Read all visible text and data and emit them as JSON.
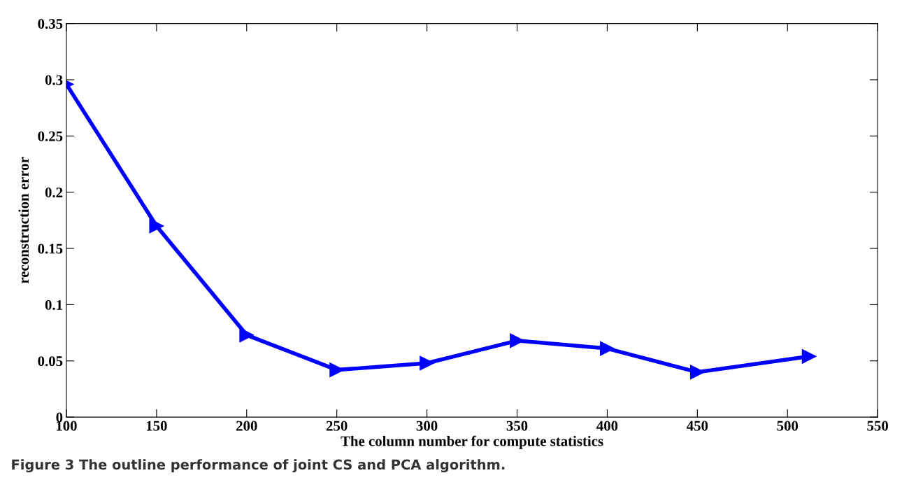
{
  "chart_data": {
    "type": "line",
    "xlabel": "The column number for compute statistics",
    "ylabel": "reconstruction error",
    "x": [
      100,
      150,
      200,
      250,
      300,
      350,
      400,
      450,
      512
    ],
    "series": [
      {
        "color": "#0000ff",
        "values": [
          0.296,
          0.17,
          0.073,
          0.042,
          0.048,
          0.068,
          0.061,
          0.04,
          0.054
        ]
      }
    ],
    "xlim": [
      100,
      550
    ],
    "xticks": [
      100,
      150,
      200,
      250,
      300,
      350,
      400,
      450,
      500,
      550
    ],
    "ylim": [
      0,
      0.35
    ],
    "yticks": [
      0,
      0.05,
      0.1,
      0.15,
      0.2,
      0.25,
      0.3,
      0.35
    ],
    "marker": "triangle",
    "line_style": "solid",
    "grid": false,
    "legend": false,
    "annotations": [
      "Figure 3 The outline performance of joint CS and PCA algorithm."
    ]
  }
}
